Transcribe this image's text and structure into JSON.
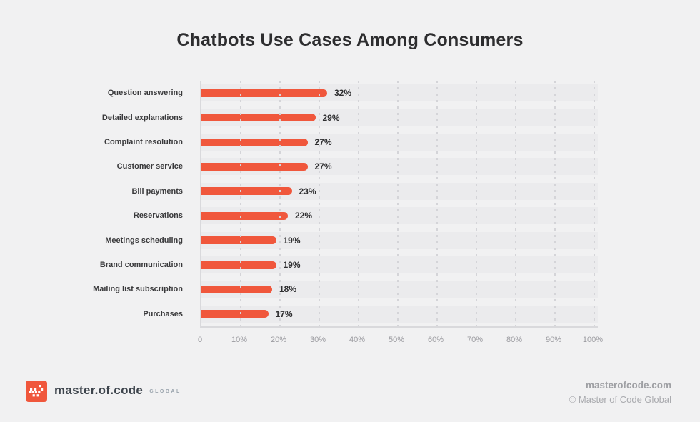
{
  "title": "Chatbots Use Cases Among Consumers",
  "chart_data": {
    "type": "bar",
    "orientation": "horizontal",
    "title": "Chatbots Use Cases Among Consumers",
    "categories": [
      "Question answering",
      "Detailed explanations",
      "Complaint resolution",
      "Customer service",
      "Bill payments",
      "Reservations",
      "Meetings scheduling",
      "Brand communication",
      "Mailing list subscription",
      "Purchases"
    ],
    "values": [
      32,
      29,
      27,
      27,
      23,
      22,
      19,
      19,
      18,
      17
    ],
    "value_suffix": "%",
    "xlabel": "",
    "ylabel": "",
    "xlim": [
      0,
      100
    ],
    "x_ticks": [
      "0",
      "10%",
      "20%",
      "30%",
      "40%",
      "50%",
      "60%",
      "70%",
      "80%",
      "90%",
      "100%"
    ],
    "grid": "dashed-vertical",
    "legend": "none"
  },
  "colors": {
    "background": "#f1f1f2",
    "bar": "#F0573C",
    "stripe": "#ebebed",
    "axis": "#d9d9dc",
    "title_text": "#2d2d2f",
    "tick_text": "#9b9ba0"
  },
  "footer": {
    "logo": {
      "brand": "master.of.code",
      "suffix": "GLOBAL",
      "icon": "pixel-crown-icon",
      "icon_color": "#F0573C"
    },
    "website": "masterofcode.com",
    "copyright": "© Master of Code Global"
  }
}
